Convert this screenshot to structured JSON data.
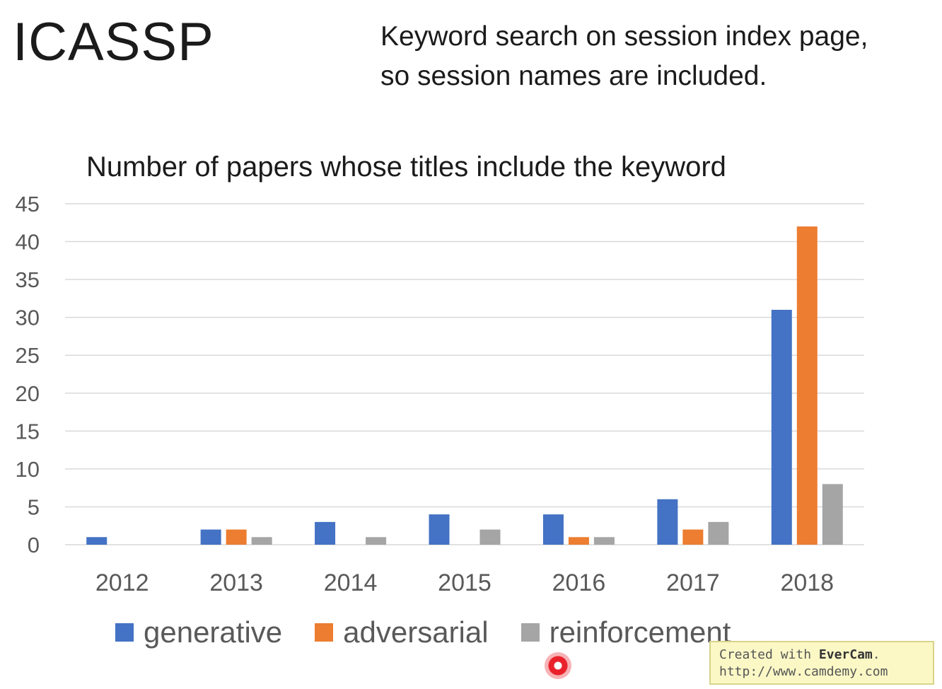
{
  "slide": {
    "title": "ICASSP",
    "note_line1": "Keyword search on session index page,",
    "note_line2": "so session names are included."
  },
  "chart_data": {
    "type": "bar",
    "title": "Number of papers whose titles include the keyword",
    "categories": [
      "2012",
      "2013",
      "2014",
      "2015",
      "2016",
      "2017",
      "2018"
    ],
    "series": [
      {
        "name": "generative",
        "color": "#4472c4",
        "values": [
          1,
          2,
          3,
          4,
          4,
          6,
          31
        ]
      },
      {
        "name": "adversarial",
        "color": "#ed7d31",
        "values": [
          0,
          2,
          0,
          0,
          1,
          2,
          42
        ]
      },
      {
        "name": "reinforcement",
        "color": "#a5a5a5",
        "values": [
          0,
          1,
          1,
          2,
          1,
          3,
          8
        ]
      }
    ],
    "ylim": [
      0,
      45
    ],
    "yticks": [
      0,
      5,
      10,
      15,
      20,
      25,
      30,
      35,
      40,
      45
    ],
    "grid": true,
    "legend": "bottom"
  },
  "watermark": {
    "line1_prefix": "Created with ",
    "line1_brand": "EverCam",
    "line1_suffix": ".",
    "line2": "http://www.camdemy.com"
  },
  "icons": {
    "cursor": "recording-cursor-icon"
  }
}
